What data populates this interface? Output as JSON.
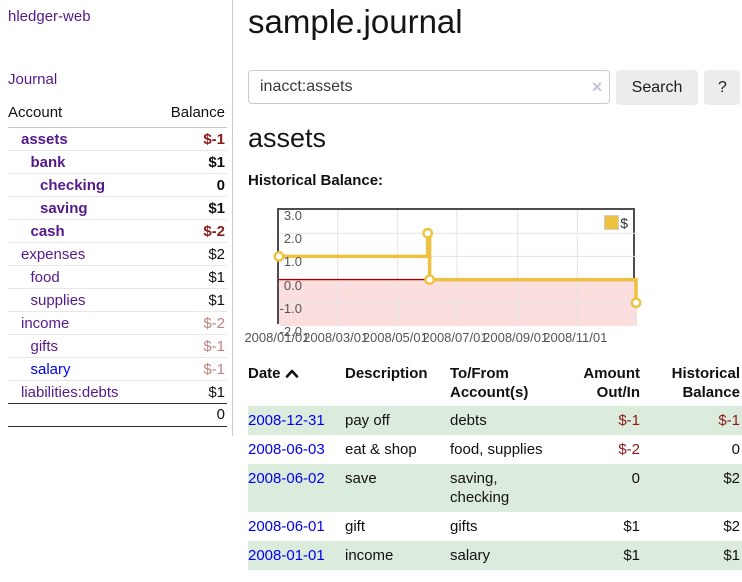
{
  "colors": {
    "purple": "#551a8b",
    "blue": "#0000ee",
    "negative": "#8b1a1a",
    "negativeFaded": "#c08383",
    "rowGreen": "#dcecdc",
    "gold": "#edc240",
    "negativeRegion": "#fbdede",
    "zeroLine": "#a40000",
    "grid": "#e4e4e4",
    "plotBorder": "#4d4d4d",
    "axisText": "#545454",
    "divider": "#cccccc",
    "buttonBg": "#ececec",
    "inputBorder": "#cccccc",
    "clearIcon": "#c6c0d8"
  },
  "sidebar": {
    "brand": "hledger-web",
    "journal_link": "Journal",
    "accounts_table": {
      "headers": {
        "account": "Account",
        "balance": "Balance"
      },
      "rows": [
        {
          "name": "assets",
          "level": 1,
          "bold": true,
          "link_color": "purple",
          "balance": "$-1",
          "balance_tone": "negative"
        },
        {
          "name": "bank",
          "level": 2,
          "bold": true,
          "link_color": "purple",
          "balance": "$1",
          "balance_tone": "normal"
        },
        {
          "name": "checking",
          "level": 3,
          "bold": true,
          "link_color": "purple",
          "balance": "0",
          "balance_tone": "normal"
        },
        {
          "name": "saving",
          "level": 3,
          "bold": true,
          "link_color": "purple",
          "balance": "$1",
          "balance_tone": "normal"
        },
        {
          "name": "cash",
          "level": 2,
          "bold": true,
          "link_color": "purple",
          "balance": "$-2",
          "balance_tone": "negative"
        },
        {
          "name": "expenses",
          "level": 1,
          "bold": false,
          "link_color": "purple",
          "balance": "$2",
          "balance_tone": "normal"
        },
        {
          "name": "food",
          "level": 2,
          "bold": false,
          "link_color": "purple",
          "balance": "$1",
          "balance_tone": "normal"
        },
        {
          "name": "supplies",
          "level": 2,
          "bold": false,
          "link_color": "purple",
          "balance": "$1",
          "balance_tone": "normal"
        },
        {
          "name": "income",
          "level": 1,
          "bold": false,
          "link_color": "purple",
          "balance": "$-2",
          "balance_tone": "negative-faded"
        },
        {
          "name": "gifts",
          "level": 2,
          "bold": false,
          "link_color": "purple",
          "balance": "$-1",
          "balance_tone": "negative-faded"
        },
        {
          "name": "salary",
          "level": 2,
          "bold": false,
          "link_color": "blue",
          "balance": "$-1",
          "balance_tone": "negative-faded"
        },
        {
          "name": "liabilities:debts",
          "level": 1,
          "bold": false,
          "link_color": "purple",
          "balance": "$1",
          "balance_tone": "normal"
        }
      ],
      "total": "0"
    }
  },
  "main": {
    "title": "sample.journal",
    "search": {
      "value": "inacct:assets",
      "clear_icon": "×",
      "search_button": "Search",
      "help_button": "?"
    },
    "account_heading": "assets",
    "chart_title": "Historical Balance:",
    "register": {
      "columns": [
        {
          "line1": "Date",
          "line2": "",
          "align": "left",
          "sort": "ascending"
        },
        {
          "line1": "Description",
          "line2": "",
          "align": "left"
        },
        {
          "line1": "To/From",
          "line2": "Account(s)",
          "align": "left"
        },
        {
          "line1": "Amount",
          "line2": "Out/In",
          "align": "right"
        },
        {
          "line1": "Historical",
          "line2": "Balance",
          "align": "right"
        }
      ],
      "rows": [
        {
          "date": "2008-12-31",
          "description": "pay off",
          "accounts": "debts",
          "amount": "$-1",
          "amount_tone": "negative",
          "balance": "$-1",
          "balance_tone": "negative"
        },
        {
          "date": "2008-06-03",
          "description": "eat & shop",
          "accounts": "food, supplies",
          "amount": "$-2",
          "amount_tone": "negative",
          "balance": "0",
          "balance_tone": "normal"
        },
        {
          "date": "2008-06-02",
          "description": "save",
          "accounts": "saving, checking",
          "amount": "0",
          "amount_tone": "normal",
          "balance": "$2",
          "balance_tone": "normal"
        },
        {
          "date": "2008-06-01",
          "description": "gift",
          "accounts": "gifts",
          "amount": "$1",
          "amount_tone": "normal",
          "balance": "$2",
          "balance_tone": "normal"
        },
        {
          "date": "2008-01-01",
          "description": "income",
          "accounts": "salary",
          "amount": "$1",
          "amount_tone": "normal",
          "balance": "$1",
          "balance_tone": "normal"
        }
      ]
    }
  },
  "chart_data": {
    "type": "line",
    "step": true,
    "title": "Historical Balance:",
    "ylim": [
      -2,
      3
    ],
    "y_ticks": [
      {
        "label": "3.0",
        "value": 3
      },
      {
        "label": "2.0",
        "value": 2
      },
      {
        "label": "1.0",
        "value": 1
      },
      {
        "label": "0.0",
        "value": 0
      },
      {
        "label": "-1.0",
        "value": -1
      },
      {
        "label": "-2.0",
        "value": -2
      }
    ],
    "x_ticks": [
      {
        "label": "2008/01/01",
        "x": 0.0
      },
      {
        "label": "2008/03/01",
        "x": 0.1639
      },
      {
        "label": "2008/05/01",
        "x": 0.3306
      },
      {
        "label": "2008/07/01",
        "x": 0.4973
      },
      {
        "label": "2008/09/01",
        "x": 0.6667
      },
      {
        "label": "2008/11/01",
        "x": 0.8333
      }
    ],
    "series": [
      {
        "name": "$",
        "points": [
          {
            "date": "2008-01-01",
            "x": 0.0,
            "y": 1
          },
          {
            "date": "2008-06-01",
            "x": 0.4153,
            "y": 2
          },
          {
            "date": "2008-06-03",
            "x": 0.4208,
            "y": 0
          },
          {
            "date": "2008-12-31",
            "x": 0.9973,
            "y": -1
          }
        ]
      }
    ],
    "legend": {
      "label": "$",
      "position": "top-right"
    },
    "grid": true,
    "negative_region_shaded": true
  }
}
